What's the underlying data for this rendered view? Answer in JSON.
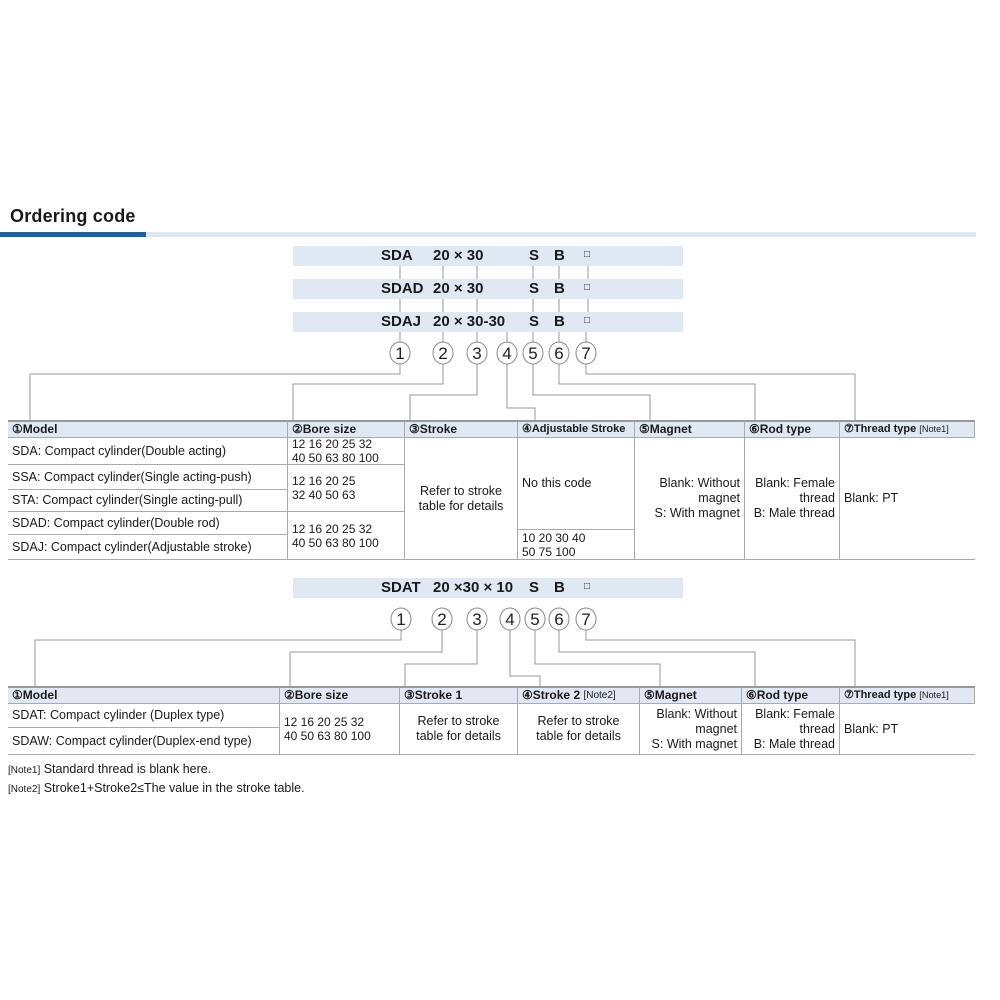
{
  "title": "Ordering code",
  "codes": [
    {
      "model": "SDA",
      "size": "20 × 30",
      "s": "S",
      "b": "B",
      "box": "□"
    },
    {
      "model": "SDAD",
      "size": "20 × 30",
      "s": "S",
      "b": "B",
      "box": "□"
    },
    {
      "model": "SDAJ",
      "size": "20 × 30-30",
      "s": "S",
      "b": "B",
      "box": "□"
    }
  ],
  "code2": {
    "model": "SDAT",
    "size": "20 ×30 × 10",
    "s": "S",
    "b": "B",
    "box": "□"
  },
  "circles": [
    "1",
    "2",
    "3",
    "4",
    "5",
    "6",
    "7"
  ],
  "table1": {
    "headers": [
      "①Model",
      "②Bore size",
      "③Stroke",
      "④Adjustable Stroke",
      "⑤Magnet",
      "⑥Rod type",
      "⑦Thread type"
    ],
    "header_note": "[Note1]",
    "models": [
      "SDA: Compact cylinder(Double acting)",
      "SSA: Compact cylinder(Single acting-push)",
      "STA: Compact cylinder(Single acting-pull)",
      "SDAD: Compact cylinder(Double rod)",
      "SDAJ: Compact cylinder(Adjustable stroke)"
    ],
    "bores": [
      "12 16  20  25  32\n40 50  63  80 100",
      "12 16  20  25\n32  40 50  63",
      "12 16  20  25  32\n40 50  63  80 100"
    ],
    "stroke": "Refer to stroke\ntable for details",
    "adjustable": [
      "No this code",
      "10 20 30 40\n50 75 100"
    ],
    "magnet": "Blank: Without\nmagnet\nS: With magnet",
    "rod": "Blank: Female\nthread\nB: Male thread",
    "thread": "Blank: PT"
  },
  "table2": {
    "headers": [
      "①Model",
      "②Bore size",
      "③Stroke 1",
      "④Stroke 2",
      "⑤Magnet",
      "⑥Rod type",
      "⑦Thread type"
    ],
    "header_notes": [
      "[Note2]",
      "[Note1]"
    ],
    "models": [
      "SDAT: Compact cylinder (Duplex type)",
      "SDAW: Compact cylinder(Duplex-end type)"
    ],
    "bore": "12 16  20  25  32\n40 50  63  80 100",
    "stroke1": "Refer to stroke\ntable for details",
    "stroke2": "Refer to stroke\ntable for details",
    "magnet": "Blank: Without\nmagnet\nS: With magnet",
    "rod": "Blank: Female\nthread\nB: Male thread",
    "thread": "Blank: PT"
  },
  "notes": [
    {
      "tag": "[Note1]",
      "text": " Standard thread is blank here."
    },
    {
      "tag": "[Note2]",
      "text": " Stroke1+Stroke2≤The value in the stroke table."
    }
  ],
  "colors": {
    "accent": "#1b5fa6",
    "band": "#dfe8f3",
    "line": "#999999"
  }
}
